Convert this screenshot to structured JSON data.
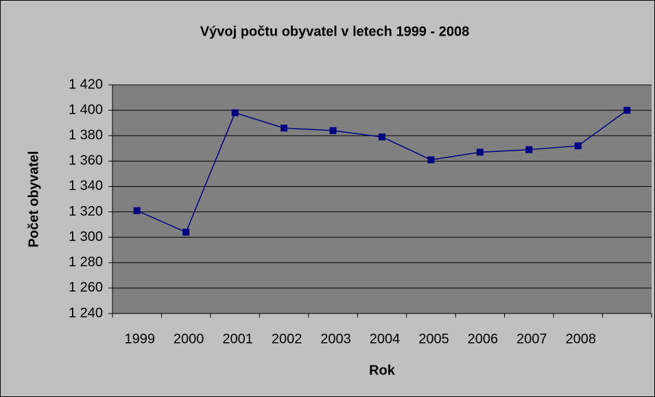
{
  "chart_data": {
    "type": "line",
    "title": "Vývoj počtu obyvatel v letech 1999 - 2008",
    "x_label": "Rok",
    "y_label": "Počet obyvatel",
    "categories": [
      "1999",
      "2000",
      "2001",
      "2002",
      "2003",
      "2004",
      "2005",
      "2006",
      "2007",
      "2008",
      null
    ],
    "series": [
      {
        "name": "Počet obyvatel",
        "color": "#000080",
        "values": [
          1321,
          1304,
          1398,
          1386,
          1384,
          1379,
          1361,
          1367,
          1369,
          1372,
          1400
        ]
      }
    ],
    "ylim": [
      1240,
      1420
    ],
    "yticks": [
      {
        "value": 1240,
        "label": "1 240"
      },
      {
        "value": 1260,
        "label": "1 260"
      },
      {
        "value": 1280,
        "label": "1 280"
      },
      {
        "value": 1300,
        "label": "1 300"
      },
      {
        "value": 1320,
        "label": "1 320"
      },
      {
        "value": 1340,
        "label": "1 340"
      },
      {
        "value": 1360,
        "label": "1 360"
      },
      {
        "value": 1380,
        "label": "1 380"
      },
      {
        "value": 1400,
        "label": "1 400"
      },
      {
        "value": 1420,
        "label": "1 420"
      }
    ],
    "grid": true
  }
}
